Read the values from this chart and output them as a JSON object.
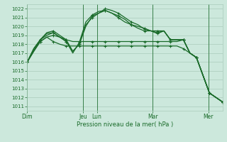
{
  "title": "",
  "xlabel": "Pression niveau de la mer( hPa )",
  "ylabel": "",
  "bg_color": "#cce8dc",
  "grid_color": "#aaccbb",
  "line_color": "#1a6b2a",
  "ylim": [
    1010.5,
    1022.5
  ],
  "yticks": [
    1011,
    1012,
    1013,
    1014,
    1015,
    1016,
    1017,
    1018,
    1019,
    1020,
    1021,
    1022
  ],
  "day_labels": [
    "Dim",
    "Jeu",
    "Lun",
    "Mar",
    "Mer"
  ],
  "day_positions": [
    0,
    12,
    15,
    27,
    39
  ],
  "xlim": [
    0,
    42
  ],
  "series": [
    [
      1016.0,
      1017.2,
      1018.3,
      1018.8,
      1019.0,
      1018.8,
      1018.5,
      1018.3,
      1018.3,
      1018.3,
      1018.3,
      1018.3,
      1018.3,
      1018.3,
      1018.3,
      1018.3,
      1018.3,
      1018.3,
      1018.3,
      1018.3,
      1018.3,
      1018.3,
      1018.3,
      1018.3,
      1018.5,
      1017.0,
      1016.5,
      1014.5,
      1012.5,
      1012.0,
      1011.5
    ],
    [
      1016.0,
      1017.2,
      1018.3,
      1018.8,
      1018.3,
      1018.0,
      1017.8,
      1017.8,
      1017.8,
      1017.8,
      1017.8,
      1017.8,
      1017.8,
      1017.8,
      1017.8,
      1017.8,
      1017.8,
      1017.8,
      1017.8,
      1017.8,
      1017.8,
      1017.8,
      1017.8,
      1017.8,
      1017.5,
      1017.0,
      1016.5,
      1014.5,
      1012.5,
      1012.0,
      1011.5
    ],
    [
      1016.0,
      1017.5,
      1018.5,
      1019.0,
      1019.3,
      1018.8,
      1018.3,
      1017.2,
      1018.0,
      1020.2,
      1021.0,
      1021.5,
      1022.0,
      1021.8,
      1021.5,
      1021.0,
      1020.5,
      1020.2,
      1019.7,
      1019.5,
      1019.3,
      1019.5,
      1018.5,
      1018.5,
      1018.5,
      1017.0,
      1016.5,
      1014.5,
      1012.5,
      1012.0,
      1011.5
    ],
    [
      1016.0,
      1017.5,
      1018.5,
      1019.2,
      1019.3,
      1018.8,
      1018.3,
      1017.0,
      1018.2,
      1020.5,
      1021.3,
      1021.7,
      1021.8,
      1021.5,
      1021.0,
      1020.5,
      1020.2,
      1020.0,
      1019.8,
      1019.5,
      1019.5,
      1019.5,
      1018.5,
      1018.5,
      1018.5,
      1017.0,
      1016.5,
      1014.5,
      1012.5,
      1012.0,
      1011.5
    ],
    [
      1016.0,
      1017.3,
      1018.5,
      1019.3,
      1019.5,
      1019.0,
      1018.5,
      1017.2,
      1018.0,
      1020.0,
      1021.2,
      1021.5,
      1021.8,
      1021.5,
      1021.2,
      1020.8,
      1020.2,
      1019.8,
      1019.5,
      1019.5,
      1019.2,
      1019.5,
      1018.5,
      1018.5,
      1018.5,
      1017.0,
      1016.5,
      1014.5,
      1012.5,
      1012.0,
      1011.5
    ]
  ]
}
